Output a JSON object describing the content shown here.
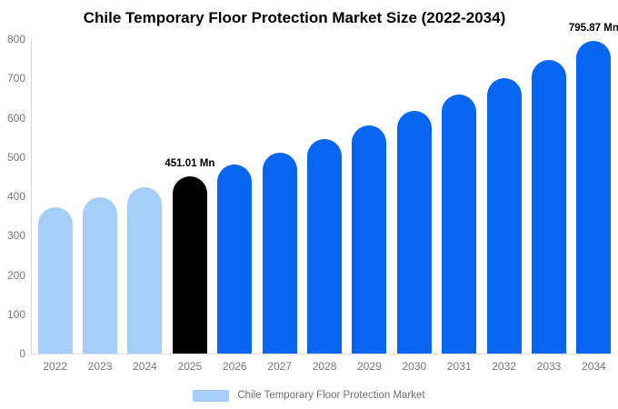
{
  "title": "Chile Temporary Floor Protection Market Size (2022-2034)",
  "legend": {
    "label": "Chile Temporary Floor Protection Market",
    "swatch_color": "#a4cdf8"
  },
  "colors": {
    "past_bar": "#a4cdf8",
    "highlight_bar": "#000000",
    "forecast_bar": "#0666f2",
    "axis_line": "#d9d9d9",
    "tick_text": "#777777",
    "title_text": "#000000",
    "background": "#ffffff"
  },
  "chart_data": {
    "type": "bar",
    "title": "Chile Temporary Floor Protection Market Size (2022-2034)",
    "unit": "Mn",
    "categories": [
      "2022",
      "2023",
      "2024",
      "2025",
      "2026",
      "2027",
      "2028",
      "2029",
      "2030",
      "2031",
      "2032",
      "2033",
      "2034"
    ],
    "values": [
      373,
      398,
      424,
      451.01,
      480,
      512,
      545,
      580,
      618,
      658,
      701,
      747,
      795.87
    ],
    "bar_colors": [
      "#a4cdf8",
      "#a4cdf8",
      "#a4cdf8",
      "#000000",
      "#0666f2",
      "#0666f2",
      "#0666f2",
      "#0666f2",
      "#0666f2",
      "#0666f2",
      "#0666f2",
      "#0666f2",
      "#0666f2"
    ],
    "annotations": [
      {
        "category": "2025",
        "text": "451.01 Mn"
      },
      {
        "category": "2034",
        "text": "795.87 Mn"
      }
    ],
    "xlabel": "",
    "ylabel": "",
    "ylim": [
      0,
      800
    ],
    "yticks": [
      0,
      100,
      200,
      300,
      400,
      500,
      600,
      700,
      800
    ],
    "grid": false,
    "legend_position": "bottom",
    "legend_entries": [
      "Chile Temporary Floor Protection Market"
    ]
  }
}
